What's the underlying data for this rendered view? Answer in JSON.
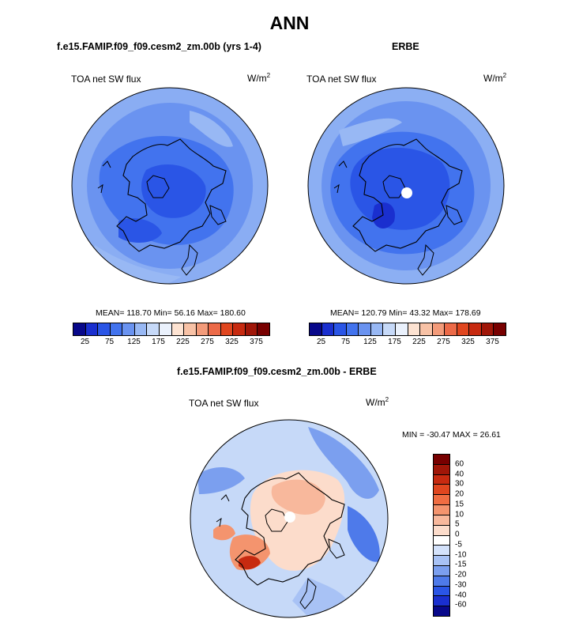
{
  "main_title": "ANN",
  "panels": [
    {
      "title": "f.e15.FAMIP.f09_f09.cesm2_zm.00b (yrs 1-4)",
      "variable": "TOA net SW flux",
      "units_base": "W/m",
      "units_exp": "2",
      "stats": "MEAN= 118.70  Min=  56.16  Max= 180.60",
      "colorbar_ticks": [
        "25",
        "75",
        "125",
        "175",
        "225",
        "275",
        "325",
        "375"
      ]
    },
    {
      "title": "ERBE",
      "variable": "TOA net SW flux",
      "units_base": "W/m",
      "units_exp": "2",
      "stats": "MEAN= 120.79  Min=  43.32  Max= 178.69",
      "colorbar_ticks": [
        "25",
        "75",
        "125",
        "175",
        "225",
        "275",
        "325",
        "375"
      ]
    },
    {
      "title": "f.e15.FAMIP.f09_f09.cesm2_zm.00b - ERBE",
      "variable": "TOA net SW flux",
      "units_base": "W/m",
      "units_exp": "2",
      "stats": "MIN = -30.47 MAX =  26.61",
      "colorbar_ticks": [
        "60",
        "40",
        "30",
        "20",
        "15",
        "10",
        "5",
        "0",
        "-5",
        "-10",
        "-15",
        "-20",
        "-30",
        "-40",
        "-60"
      ]
    }
  ],
  "colors": {
    "abs_scale": [
      "#08088a",
      "#1a2fcf",
      "#2a55e6",
      "#4273ee",
      "#6a93f0",
      "#98b8f4",
      "#c6d9f8",
      "#eaf1fc",
      "#fde3d2",
      "#f8c2a6",
      "#f39b7a",
      "#ec6a48",
      "#e0461f",
      "#c72a10",
      "#a01608",
      "#780000"
    ],
    "diff_scale": [
      "#780000",
      "#a01608",
      "#c72a10",
      "#e0461f",
      "#f06d42",
      "#f4946e",
      "#f8b89c",
      "#fcdccb",
      "#ffffff",
      "#d4e2fb",
      "#a8c2f5",
      "#7b9fef",
      "#4e7aea",
      "#2a55e6",
      "#1a2fcf",
      "#08088a"
    ],
    "map_base_model": "#5c86ee",
    "map_base_obs": "#6a93f0",
    "map_base_diff": "#c6d9f8"
  }
}
